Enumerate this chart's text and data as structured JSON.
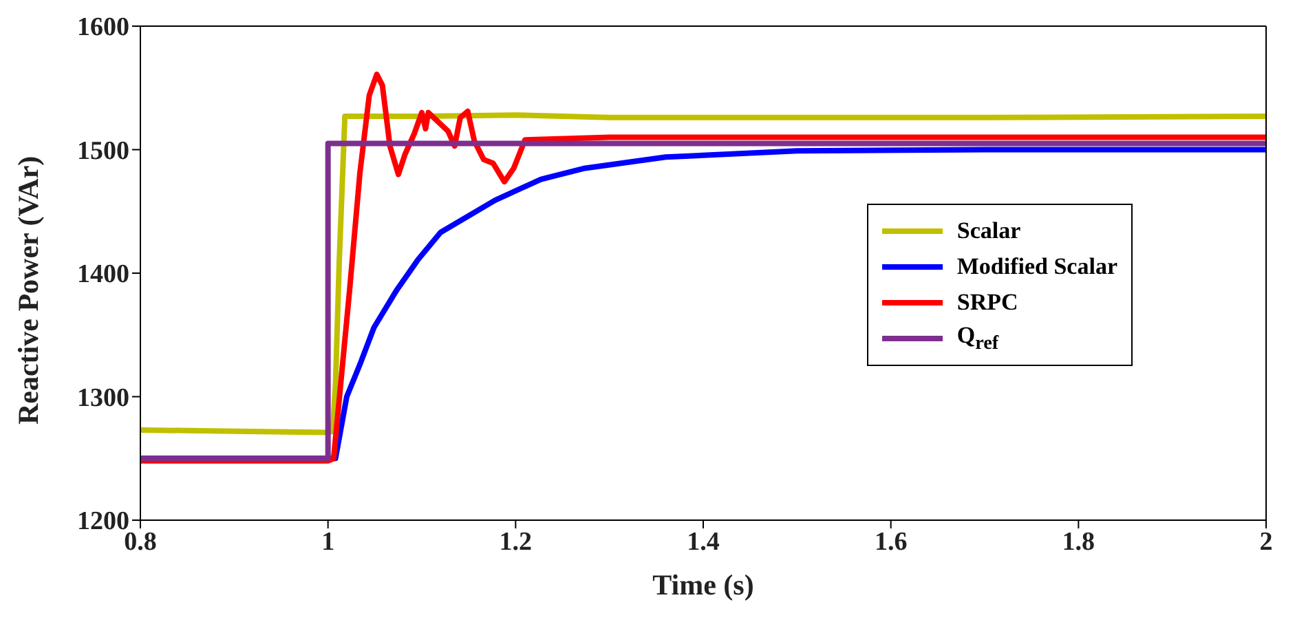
{
  "chart_data": {
    "type": "line",
    "xlabel": "Time (s)",
    "ylabel": "Reactive Power (VAr)",
    "xlim": [
      0.8,
      2
    ],
    "xticks": [
      0.8,
      1,
      1.2,
      1.4,
      1.6,
      1.8,
      2
    ],
    "ylim": [
      1200,
      1600
    ],
    "yticks": [
      1200,
      1300,
      1400,
      1500,
      1600
    ],
    "legend": "right",
    "marker": "none",
    "line_style": "solid",
    "series": [
      {
        "name": "Scalar",
        "color": "#c0c000",
        "x": [
          0.8,
          0.9,
          1.0,
          1.005,
          1.008,
          1.012,
          1.018,
          1.05,
          1.1,
          1.2,
          1.3,
          1.5,
          1.7,
          2
        ],
        "values": [
          1273,
          1272,
          1271,
          1272,
          1310,
          1410,
          1527,
          1527,
          1527,
          1528,
          1526,
          1526,
          1526,
          1527
        ]
      },
      {
        "name": "Modified Scalar",
        "color": "#0000ff",
        "x": [
          0.8,
          1.0,
          1.008,
          1.02,
          1.034,
          1.049,
          1.073,
          1.096,
          1.12,
          1.178,
          1.227,
          1.274,
          1.36,
          1.5,
          1.7,
          2
        ],
        "values": [
          1250,
          1250,
          1250,
          1300,
          1326,
          1356,
          1386,
          1411,
          1433,
          1459,
          1476,
          1485,
          1494,
          1499,
          1500,
          1500
        ]
      },
      {
        "name": "SRPC",
        "color": "#ff0000",
        "x": [
          0.8,
          1.0,
          1.006,
          1.023,
          1.034,
          1.044,
          1.052,
          1.058,
          1.066,
          1.075,
          1.082,
          1.092,
          1.1,
          1.104,
          1.107,
          1.128,
          1.135,
          1.141,
          1.149,
          1.156,
          1.166,
          1.176,
          1.188,
          1.198,
          1.21,
          1.3,
          1.6,
          2
        ],
        "values": [
          1248,
          1248,
          1250,
          1386,
          1481,
          1544,
          1561,
          1552,
          1503,
          1480,
          1496,
          1513,
          1530,
          1517,
          1530,
          1515,
          1503,
          1526,
          1531,
          1507,
          1492,
          1489,
          1474,
          1485,
          1508,
          1510,
          1510,
          1510
        ]
      },
      {
        "name": "Q$_{ref}$",
        "color": "#7e2f8e",
        "x": [
          0.8,
          1.0,
          1.0,
          2
        ],
        "values": [
          1250,
          1250,
          1505,
          1505
        ]
      }
    ]
  }
}
